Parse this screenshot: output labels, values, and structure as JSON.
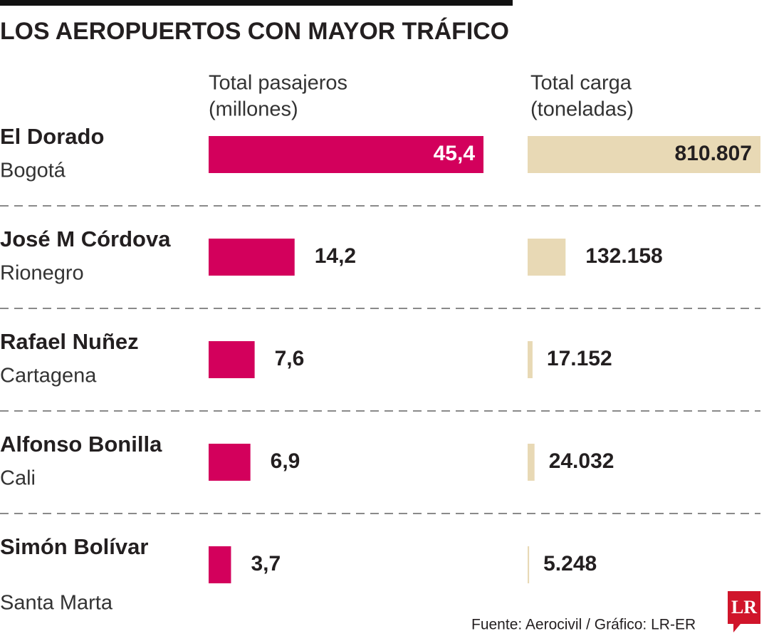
{
  "title": "LOS AEROPUERTOS CON MAYOR TRÁFICO",
  "source": "Fuente: Aerocivil / Gráfico: LR-ER",
  "logo": "LR",
  "chart_data": [
    {
      "type": "bar",
      "orientation": "horizontal",
      "title": "Total pasajeros",
      "subtitle": "(millones)",
      "categories": [
        "El Dorado",
        "José M Córdova",
        "Rafael Nuñez",
        "Alfonso Bonilla",
        "Simón Bolívar"
      ],
      "category_subtitles": [
        "Bogotá",
        "Rionegro",
        "Cartagena",
        "Cali",
        "Santa Marta"
      ],
      "values": [
        45.4,
        14.2,
        7.6,
        6.9,
        3.7
      ],
      "value_labels": [
        "45,4",
        "14,2",
        "7,6",
        "6,9",
        "3,7"
      ],
      "color": "#d3005c",
      "xlim": [
        0,
        45.4
      ]
    },
    {
      "type": "bar",
      "orientation": "horizontal",
      "title": "Total carga",
      "subtitle": "(toneladas)",
      "values": [
        810807,
        132158,
        17152,
        24032,
        5248
      ],
      "value_labels": [
        "810.807",
        "132.158",
        "17.152",
        "24.032",
        "5.248"
      ],
      "color": "#e8d9b5",
      "xlim": [
        0,
        810807
      ]
    }
  ]
}
